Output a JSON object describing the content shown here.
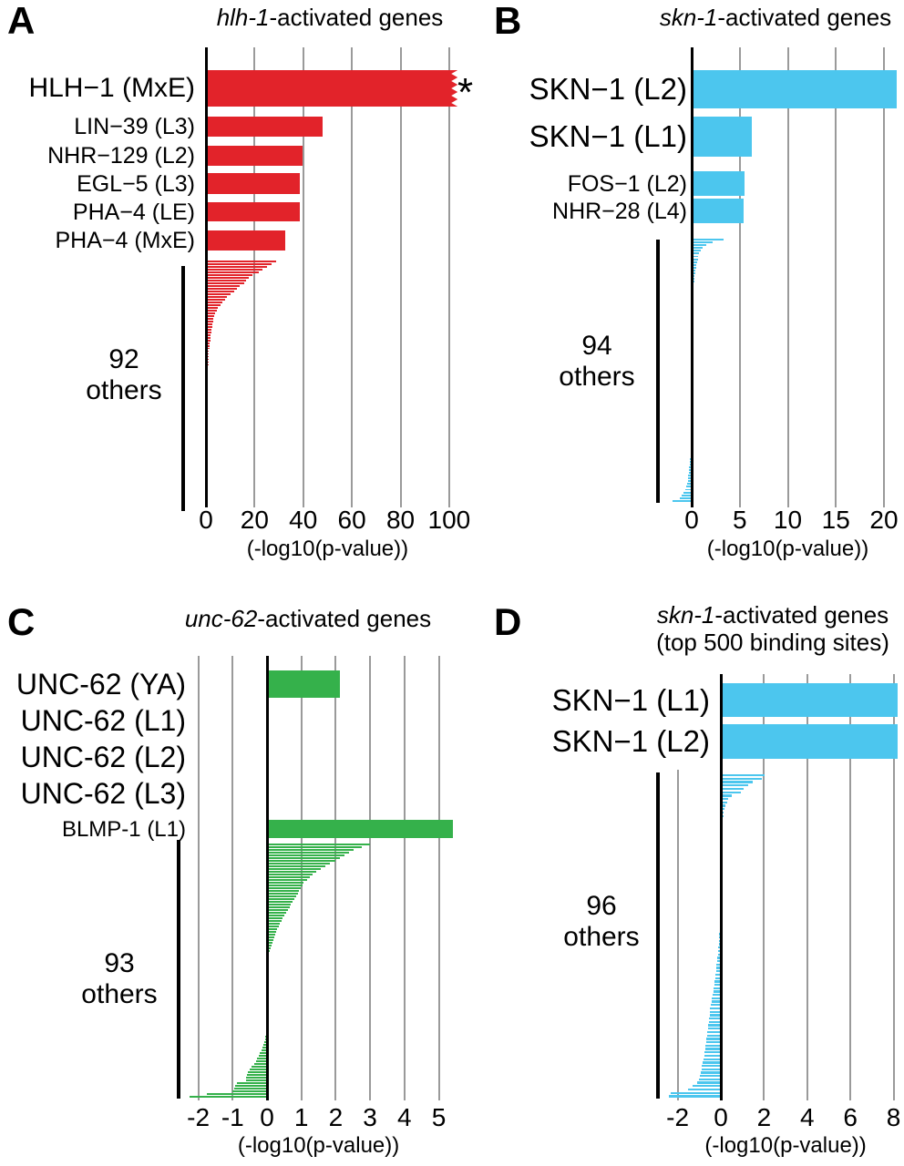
{
  "chart_data": [
    {
      "type": "bar",
      "orientation": "horizontal",
      "panel_letter": "A",
      "title": "hlh-1-activated genes",
      "title_italic": "hlh-1",
      "title_rest": "-activated genes",
      "subtitle": "",
      "xlabel": "(-log10(p-value))",
      "xticks": [
        0,
        20,
        40,
        60,
        80,
        100
      ],
      "xlim": [
        0,
        106
      ],
      "grid": true,
      "bar_color": "#e2232a",
      "named_bars": [
        {
          "label": "HLH−1 (MxE)",
          "value": 103.5,
          "emphasis": true,
          "clipped": true,
          "annotation": "*"
        },
        {
          "label": "LIN−39 (L3)",
          "value": 48.0,
          "emphasis": false
        },
        {
          "label": "NHR−129 (L2)",
          "value": 39.6,
          "emphasis": false
        },
        {
          "label": "EGL−5 (L3)",
          "value": 38.7,
          "emphasis": false
        },
        {
          "label": "PHA−4 (LE)",
          "value": 38.7,
          "emphasis": false
        },
        {
          "label": "PHA−4 (MxE)",
          "value": 32.5,
          "emphasis": false
        }
      ],
      "others": {
        "count": 92,
        "label_line1": "92",
        "label_line2": "others",
        "values": [
          29.0,
          27.1,
          25.0,
          23.3,
          21.8,
          19.2,
          17.7,
          16.5,
          15.6,
          14.0,
          12.7,
          11.7,
          10.2,
          8.7,
          7.8,
          6.7,
          5.9,
          5.0,
          4.4,
          3.8,
          3.4,
          3.1,
          2.9,
          2.7,
          2.5,
          2.3,
          2.15,
          2.0,
          1.85,
          1.7,
          1.6,
          1.5,
          1.4,
          1.3,
          1.2,
          1.1,
          1.05,
          1.0,
          0.95,
          0.9,
          0.85,
          0.8,
          0.75,
          0.7,
          0.65,
          0.6,
          0.55,
          0.5,
          0.48,
          0.45,
          0.42,
          0.4,
          0.38,
          0.35,
          0.32,
          0.3,
          0.28,
          0.25,
          0.22,
          0.2,
          0.15,
          0.1,
          0.05,
          0,
          0,
          0,
          0,
          0,
          0,
          0,
          0,
          0,
          0,
          0,
          0,
          0,
          0,
          0,
          0,
          0,
          0,
          0,
          0,
          0,
          0,
          0,
          0,
          0,
          0,
          0,
          0,
          0
        ]
      }
    },
    {
      "type": "bar",
      "orientation": "horizontal",
      "panel_letter": "B",
      "title": "skn-1-activated genes",
      "title_italic": "skn-1",
      "title_rest": "-activated genes",
      "subtitle": "",
      "xlabel": "(-log10(p-value))",
      "xticks": [
        0,
        5,
        10,
        15,
        20
      ],
      "xlim": [
        -2.2,
        21.5
      ],
      "grid": true,
      "bar_color": "#4cc6ee",
      "named_bars": [
        {
          "label": "SKN−1 (L2)",
          "value": 21.3,
          "emphasis": true
        },
        {
          "label": "SKN−1 (L1)",
          "value": 6.3,
          "emphasis": true
        },
        {
          "label": "FOS−1 (L2)",
          "value": 5.5,
          "emphasis": false
        },
        {
          "label": "NHR−28 (L4)",
          "value": 5.4,
          "emphasis": false
        }
      ],
      "others": {
        "count": 94,
        "label_line1": "94",
        "label_line2": "others",
        "values": [
          3.3,
          2.2,
          1.55,
          1.15,
          0.92,
          0.8,
          0.7,
          0.62,
          0.55,
          0.5,
          0.45,
          0.4,
          0.36,
          0.32,
          0.28,
          0.25,
          0.22,
          0.19,
          0.16,
          0.13,
          0.11,
          0.09,
          0.07,
          0.05,
          0.03,
          0,
          0,
          0,
          0,
          0,
          0,
          0,
          0,
          0,
          0,
          0,
          0,
          0,
          0,
          0,
          0,
          0,
          0,
          0,
          0,
          0,
          0,
          0,
          0,
          0,
          0,
          0,
          0,
          0,
          0,
          0,
          0,
          0,
          0,
          0,
          0,
          0,
          0,
          0,
          0,
          0,
          0,
          0,
          0,
          0,
          0,
          0,
          -0.03,
          -0.05,
          -0.07,
          -0.09,
          -0.11,
          -0.13,
          -0.15,
          -0.18,
          -0.21,
          -0.24,
          -0.27,
          -0.3,
          -0.34,
          -0.38,
          -0.42,
          -0.47,
          -0.55,
          -0.65,
          -0.85,
          -1.0,
          -1.2,
          -2.0
        ]
      }
    },
    {
      "type": "bar",
      "orientation": "horizontal",
      "panel_letter": "C",
      "title": "unc-62-activated genes",
      "title_italic": "unc-62",
      "title_rest": "-activated genes",
      "subtitle": "",
      "xlabel": "(-log10(p-value))",
      "xticks": [
        -2,
        -1,
        0,
        1,
        2,
        3,
        4,
        5
      ],
      "xlim": [
        -2.5,
        5.5
      ],
      "grid": true,
      "bar_color": "#35b14b",
      "named_bars": [
        {
          "label": "UNC-62 (YA)",
          "value": 2.12,
          "emphasis": true
        },
        {
          "label": "UNC-62 (L1)",
          "value": 0,
          "emphasis": true
        },
        {
          "label": "UNC-62 (L2)",
          "value": 0,
          "emphasis": true
        },
        {
          "label": "UNC-62 (L3)",
          "value": 0,
          "emphasis": true
        },
        {
          "label": "BLMP-1 (L1)",
          "value": 5.4,
          "emphasis": false
        }
      ],
      "others": {
        "count": 93,
        "label_line1": "93",
        "label_line2": "others",
        "values": [
          3.0,
          2.75,
          2.52,
          2.39,
          2.26,
          2.12,
          2.0,
          1.82,
          1.69,
          1.56,
          1.42,
          1.33,
          1.25,
          1.16,
          1.06,
          1.03,
          0.98,
          0.94,
          0.9,
          0.85,
          0.8,
          0.75,
          0.7,
          0.65,
          0.6,
          0.55,
          0.5,
          0.46,
          0.42,
          0.38,
          0.34,
          0.3,
          0.27,
          0.24,
          0.21,
          0.18,
          0.15,
          0.12,
          0.1,
          0.08,
          0.05,
          0.03,
          0,
          0,
          0,
          0,
          0,
          0,
          0,
          0,
          0,
          0,
          0,
          0,
          0,
          0,
          0,
          0,
          0,
          0,
          0,
          0,
          0,
          0,
          0,
          0,
          0,
          0,
          0,
          0,
          -0.04,
          -0.06,
          -0.08,
          -0.1,
          -0.13,
          -0.16,
          -0.2,
          -0.24,
          -0.28,
          -0.33,
          -0.38,
          -0.44,
          -0.5,
          -0.55,
          -0.58,
          -0.6,
          -0.62,
          -0.88,
          -0.92,
          -0.95,
          -1.0,
          -1.75,
          -2.25
        ]
      }
    },
    {
      "type": "bar",
      "orientation": "horizontal",
      "panel_letter": "D",
      "title": "skn-1-activated genes",
      "title_italic": "skn-1",
      "title_rest": "-activated genes",
      "subtitle": "(top 500 binding sites)",
      "xlabel": "(-log10(p-value))",
      "xticks": [
        -2,
        0,
        2,
        4,
        6,
        8
      ],
      "xlim": [
        -2.6,
        8.3
      ],
      "grid": true,
      "bar_color": "#4cc6ee",
      "named_bars": [
        {
          "label": "SKN−1 (L1)",
          "value": 8.2,
          "emphasis": true
        },
        {
          "label": "SKN−1 (L2)",
          "value": 8.2,
          "emphasis": true
        }
      ],
      "others": {
        "count": 96,
        "label_line1": "96",
        "label_line2": "others",
        "values": [
          2.04,
          1.9,
          1.48,
          1.27,
          1.05,
          0.92,
          0.49,
          0.35,
          0.28,
          0.21,
          0.17,
          0.14,
          0.11,
          0.08,
          0.05,
          0.03,
          0,
          0,
          0,
          0,
          0,
          0,
          0,
          0,
          0,
          0,
          0,
          0,
          0,
          0,
          0,
          0,
          0,
          0,
          0,
          0,
          0,
          0,
          0,
          0,
          0,
          0,
          -0.02,
          -0.03,
          -0.04,
          -0.05,
          -0.06,
          -0.07,
          -0.08,
          -0.09,
          -0.1,
          -0.11,
          -0.12,
          -0.13,
          -0.15,
          -0.17,
          -0.19,
          -0.21,
          -0.23,
          -0.25,
          -0.27,
          -0.29,
          -0.31,
          -0.33,
          -0.35,
          -0.38,
          -0.41,
          -0.44,
          -0.47,
          -0.5,
          -0.5,
          -0.52,
          -0.54,
          -0.56,
          -0.58,
          -0.6,
          -0.62,
          -0.64,
          -0.66,
          -0.68,
          -0.7,
          -0.72,
          -0.75,
          -0.78,
          -0.81,
          -0.84,
          -0.87,
          -0.9,
          -0.93,
          -0.96,
          -1.0,
          -1.1,
          -1.3,
          -1.5,
          -2.3,
          -2.4
        ]
      }
    }
  ],
  "colors": {
    "red": "#e2232a",
    "cyan": "#4cc6ee",
    "green": "#35b14b",
    "grid_gray": "#9a9a9a",
    "axis_black": "#000000"
  }
}
